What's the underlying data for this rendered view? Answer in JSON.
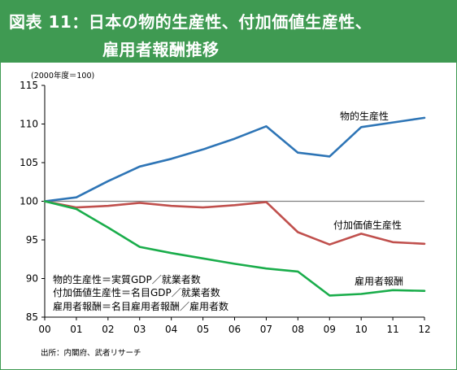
{
  "figure": {
    "title_line1": "図表 11：日本の物的生産性、付加価値生産性、",
    "title_line2": "雇用者報酬推移",
    "unit_note": "(2000年度＝100)",
    "definitions": [
      "物的生産性＝実質GDP／就業者数",
      "付加価値生産性＝名目GDP／就業者数",
      "雇用者報酬＝名目雇用者報酬／雇用者数"
    ],
    "source": "出所：内閣府、武者リサーチ"
  },
  "colors": {
    "header": "#3f9a52",
    "physical": "#2e75b6",
    "value_added": "#c0504d",
    "compensation": "#1aad4b"
  },
  "chart_data": {
    "type": "line",
    "x": [
      "00",
      "01",
      "02",
      "03",
      "04",
      "05",
      "06",
      "07",
      "08",
      "09",
      "10",
      "11",
      "12"
    ],
    "ylim": [
      85,
      115
    ],
    "yticks": [
      85,
      90,
      95,
      100,
      105,
      110,
      115
    ],
    "grid": false,
    "reference_line": 100,
    "series": [
      {
        "name": "物的生産性",
        "color": "#2e75b6",
        "values": [
          100,
          100.5,
          102.6,
          104.5,
          105.5,
          106.7,
          108.1,
          109.7,
          106.3,
          105.8,
          109.6,
          110.2,
          110.8
        ]
      },
      {
        "name": "付加価値生産性",
        "color": "#c0504d",
        "values": [
          100,
          99.2,
          99.4,
          99.8,
          99.4,
          99.2,
          99.5,
          99.9,
          96.0,
          94.4,
          95.8,
          94.7,
          94.5
        ]
      },
      {
        "name": "雇用者報酬",
        "color": "#1aad4b",
        "values": [
          100,
          99.0,
          96.6,
          94.1,
          93.3,
          92.6,
          91.9,
          91.3,
          90.9,
          87.8,
          88.0,
          88.5,
          88.4
        ]
      }
    ]
  }
}
